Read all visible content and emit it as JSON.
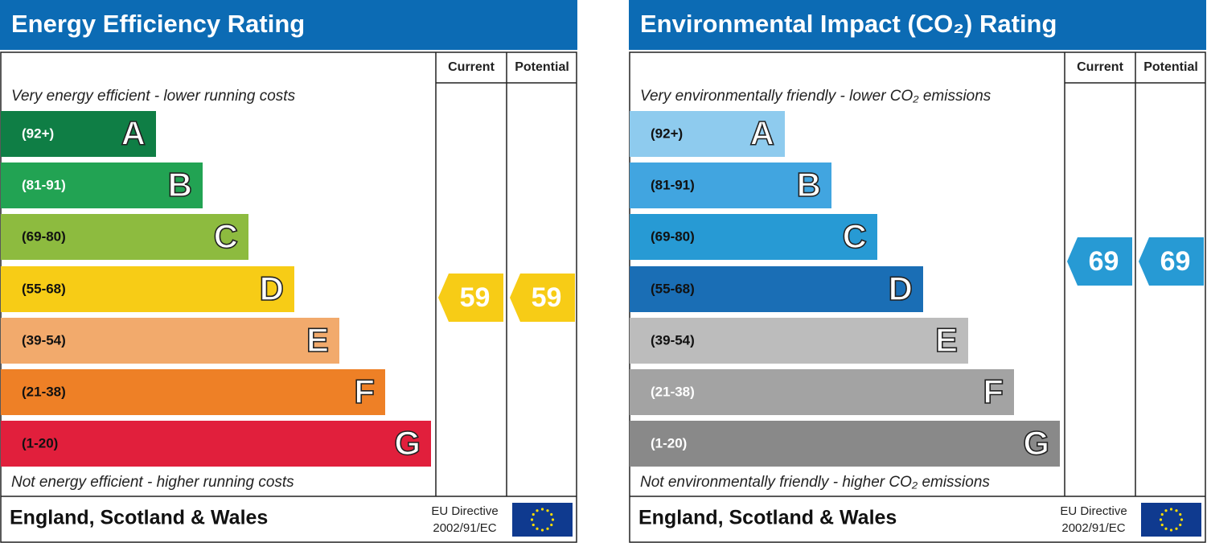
{
  "panels": [
    {
      "title": "Energy Efficiency Rating",
      "columns": [
        "Current",
        "Potential"
      ],
      "top_note": "Very energy efficient - lower running costs",
      "bands": [
        {
          "range": "(92+)",
          "letter": "A"
        },
        {
          "range": "(81-91)",
          "letter": "B"
        },
        {
          "range": "(69-80)",
          "letter": "C"
        },
        {
          "range": "(55-68)",
          "letter": "D"
        },
        {
          "range": "(39-54)",
          "letter": "E"
        },
        {
          "range": "(21-38)",
          "letter": "F"
        },
        {
          "range": "(1-20)",
          "letter": "G"
        }
      ],
      "current": 59,
      "potential": 59,
      "bottom_note": "Not energy efficient - higher running costs",
      "footer": {
        "region": "England, Scotland & Wales",
        "directive": [
          "EU Directive",
          "2002/91/EC"
        ]
      }
    },
    {
      "title": "Environmental Impact (CO₂) Rating",
      "columns": [
        "Current",
        "Potential"
      ],
      "top_note": "Very environmentally friendly - lower CO₂ emissions",
      "bands": [
        {
          "range": "(92+)",
          "letter": "A"
        },
        {
          "range": "(81-91)",
          "letter": "B"
        },
        {
          "range": "(69-80)",
          "letter": "C"
        },
        {
          "range": "(55-68)",
          "letter": "D"
        },
        {
          "range": "(39-54)",
          "letter": "E"
        },
        {
          "range": "(21-38)",
          "letter": "F"
        },
        {
          "range": "(1-20)",
          "letter": "G"
        }
      ],
      "current": 69,
      "potential": 69,
      "bottom_note": "Not environmentally friendly - higher CO₂ emissions",
      "footer": {
        "region": "England, Scotland & Wales",
        "directive": [
          "EU Directive",
          "2002/91/EC"
        ]
      }
    }
  ]
}
